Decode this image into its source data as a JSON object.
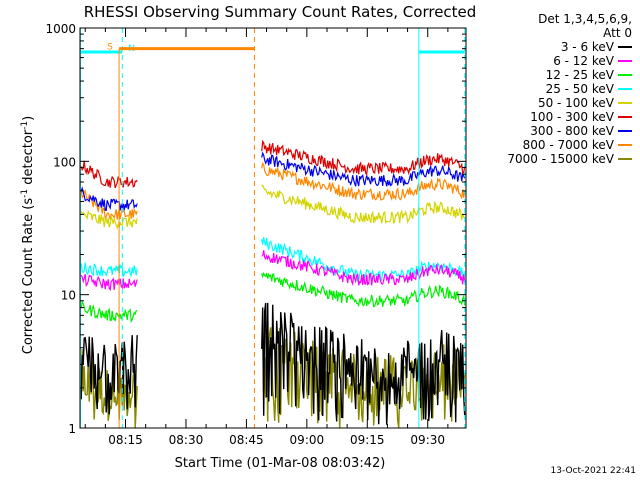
{
  "chart_data": {
    "type": "line",
    "title": "RHESSI Observing Summary Count Rates, Corrected",
    "xlabel": "Start Time (01-Mar-08 08:03:42)",
    "ylabel": "Corrected Count Rate (s",
    "ylabel_sup1": "-1",
    "ylabel_mid": " detector",
    "ylabel_sup2": "-1",
    "ylabel_end": ")",
    "yscale": "log",
    "ylim": [
      1,
      1000
    ],
    "xlim": [
      "08:03:42",
      "09:39:30"
    ],
    "xlim_min": [
      483.7,
      579.5
    ],
    "y_ticks": [
      "1",
      "10",
      "100",
      "1000"
    ],
    "x_ticks": [
      {
        "label": "08:15",
        "t": 495
      },
      {
        "label": "08:30",
        "t": 510
      },
      {
        "label": "08:45",
        "t": 525
      },
      {
        "label": "09:00",
        "t": 540
      },
      {
        "label": "09:15",
        "t": 555
      },
      {
        "label": "09:30",
        "t": 570
      }
    ],
    "legend_header": [
      "Det 1,3,4,5,6,9,",
      "Att 0"
    ],
    "series": [
      {
        "name": "3 - 6 keV",
        "color": "#000000"
      },
      {
        "name": "6 - 12 keV",
        "color": "#ff00ff"
      },
      {
        "name": "12 - 25 keV",
        "color": "#00ee00"
      },
      {
        "name": "25 - 50 keV",
        "color": "#00ffff"
      },
      {
        "name": "50 - 100 keV",
        "color": "#d4d400"
      },
      {
        "name": "100 - 300 keV",
        "color": "#dd0000"
      },
      {
        "name": "300 - 800 keV",
        "color": "#0000ee"
      },
      {
        "name": "800 - 7000 keV",
        "color": "#ff8800"
      },
      {
        "name": "7000 - 15000 keV",
        "color": "#888800"
      }
    ],
    "segments": [
      {
        "t_start": 484.0,
        "t_end": 498.0,
        "levels": {
          "3 - 6 keV": [
            3.5,
            3.2
          ],
          "6 - 12 keV": [
            13,
            12
          ],
          "12 - 25 keV": [
            8,
            7
          ],
          "25 - 50 keV": [
            16,
            15
          ],
          "50 - 100 keV": [
            40,
            35
          ],
          "100 - 300 keV": [
            95,
            70
          ],
          "300 - 800 keV": [
            58,
            47
          ],
          "800 - 7000 keV": [
            58,
            40
          ],
          "7000 - 15000 keV": [
            2.5,
            1.8
          ]
        }
      },
      {
        "t_start": 528.8,
        "t_end": 579.2,
        "levels": {
          "3 - 6 keV": [
            6,
            3
          ],
          "6 - 12 keV": [
            20,
            13
          ],
          "12 - 25 keV": [
            14,
            9
          ],
          "25 - 50 keV": [
            25,
            14
          ],
          "50 - 100 keV": [
            60,
            38
          ],
          "100 - 300 keV": [
            130,
            88
          ],
          "300 - 800 keV": [
            105,
            72
          ],
          "800 - 7000 keV": [
            88,
            57
          ],
          "7000 - 15000 keV": [
            4.5,
            2.3
          ]
        }
      }
    ],
    "annotations": {
      "saa": {
        "label": "S",
        "color": "#ff8800",
        "t_start": 493.4,
        "t_end": 527.0,
        "level": 700
      },
      "night": [
        {
          "label": "N",
          "color": "#00ffff",
          "t_start": 483.7,
          "t_end": 494.2,
          "level": 660
        },
        {
          "label": "",
          "color": "#00ffff",
          "t_start": 567.8,
          "t_end": 579.2,
          "level": 660
        }
      ],
      "vlines_cyan_solid": [
        483.8,
        567.8
      ],
      "vlines_cyan_dashed": [
        494.2,
        579.2
      ],
      "vlines_orange_dashed": [
        527.0
      ]
    }
  },
  "timestamp": "13-Oct-2021 22:41"
}
